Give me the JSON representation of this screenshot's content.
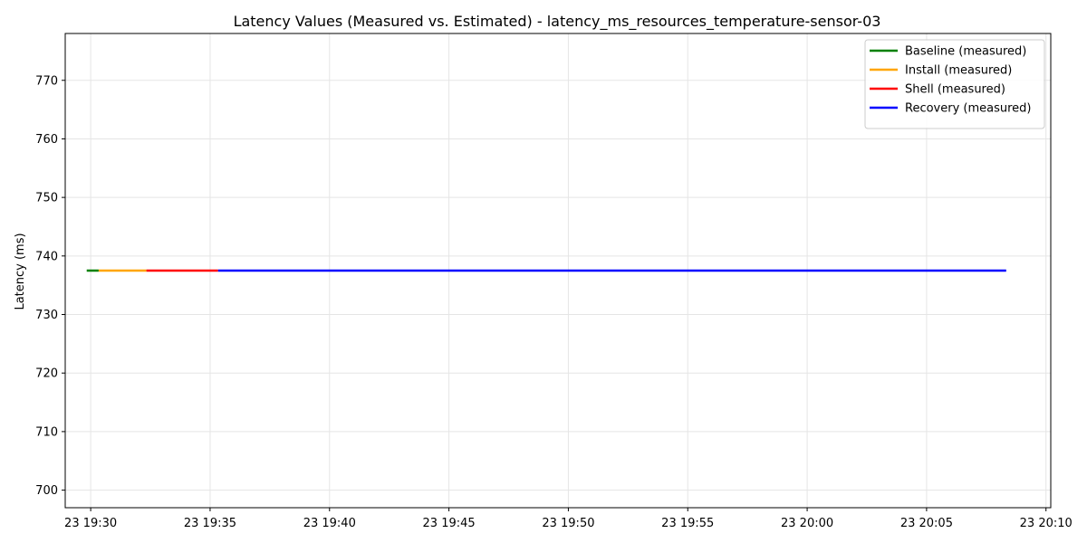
{
  "chart_data": {
    "type": "line",
    "title": "Latency Values (Measured vs. Estimated) - latency_ms_resources_temperature-sensor-03",
    "xlabel": "",
    "ylabel": "Latency (ms)",
    "xlim": [
      "23 19:28:56",
      "23 20:10:12"
    ],
    "ylim": [
      697,
      778
    ],
    "x_ticks": [
      "23 19:30",
      "23 19:35",
      "23 19:40",
      "23 19:45",
      "23 19:50",
      "23 19:55",
      "23 20:00",
      "23 20:05",
      "23 20:10"
    ],
    "y_ticks": [
      700,
      710,
      720,
      730,
      740,
      750,
      760,
      770
    ],
    "grid": true,
    "legend_position": "top-right",
    "series": [
      {
        "name": "Baseline (measured)",
        "color": "#008000",
        "x": [
          "23 19:29:50",
          "23 19:30:20"
        ],
        "y": [
          737.5,
          737.5
        ]
      },
      {
        "name": "Install (measured)",
        "color": "#ffa500",
        "x": [
          "23 19:30:20",
          "23 19:32:20"
        ],
        "y": [
          737.5,
          737.5
        ]
      },
      {
        "name": "Shell (measured)",
        "color": "#ff0000",
        "x": [
          "23 19:32:20",
          "23 19:35:20"
        ],
        "y": [
          737.5,
          737.5
        ]
      },
      {
        "name": "Recovery (measured)",
        "color": "#0000ff",
        "x": [
          "23 19:35:20",
          "23 20:08:20"
        ],
        "y": [
          737.5,
          737.5
        ]
      }
    ]
  }
}
